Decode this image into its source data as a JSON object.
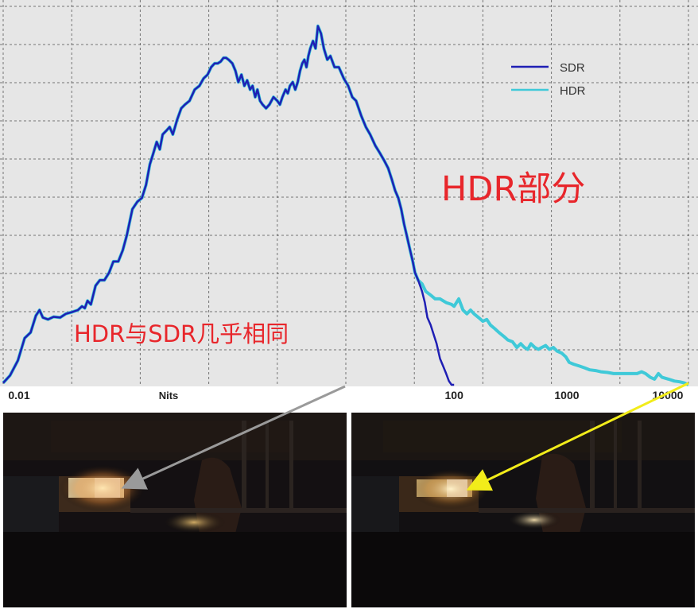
{
  "chart_data": {
    "type": "line",
    "x_scale": "log",
    "xlim": [
      0.01,
      12000
    ],
    "ylim": [
      0,
      1
    ],
    "grid": true,
    "legend_position": "top-right",
    "x_tick_labels": [
      {
        "value": 0.01,
        "label": "0.01"
      },
      {
        "value": 100,
        "label": "100"
      },
      {
        "value": 1000,
        "label": "1000"
      },
      {
        "value": 10000,
        "label": "10000"
      }
    ],
    "x_axis_label": "Nits",
    "series": [
      {
        "name": "SDR",
        "color": "#1f1fb4",
        "points": [
          [
            0.01,
            0.005
          ],
          [
            0.0115,
            0.025
          ],
          [
            0.0135,
            0.065
          ],
          [
            0.0155,
            0.125
          ],
          [
            0.0175,
            0.14
          ],
          [
            0.0195,
            0.185
          ],
          [
            0.021,
            0.2
          ],
          [
            0.0225,
            0.18
          ],
          [
            0.025,
            0.175
          ],
          [
            0.028,
            0.182
          ],
          [
            0.032,
            0.18
          ],
          [
            0.036,
            0.19
          ],
          [
            0.041,
            0.195
          ],
          [
            0.046,
            0.2
          ],
          [
            0.05,
            0.21
          ],
          [
            0.053,
            0.205
          ],
          [
            0.056,
            0.225
          ],
          [
            0.06,
            0.215
          ],
          [
            0.066,
            0.265
          ],
          [
            0.072,
            0.28
          ],
          [
            0.079,
            0.28
          ],
          [
            0.087,
            0.3
          ],
          [
            0.095,
            0.33
          ],
          [
            0.105,
            0.33
          ],
          [
            0.115,
            0.36
          ],
          [
            0.125,
            0.4
          ],
          [
            0.14,
            0.47
          ],
          [
            0.155,
            0.49
          ],
          [
            0.17,
            0.5
          ],
          [
            0.185,
            0.535
          ],
          [
            0.2,
            0.59
          ],
          [
            0.215,
            0.62
          ],
          [
            0.23,
            0.65
          ],
          [
            0.245,
            0.63
          ],
          [
            0.26,
            0.67
          ],
          [
            0.28,
            0.68
          ],
          [
            0.3,
            0.69
          ],
          [
            0.32,
            0.67
          ],
          [
            0.35,
            0.71
          ],
          [
            0.38,
            0.74
          ],
          [
            0.41,
            0.75
          ],
          [
            0.45,
            0.76
          ],
          [
            0.5,
            0.79
          ],
          [
            0.55,
            0.8
          ],
          [
            0.6,
            0.82
          ],
          [
            0.65,
            0.83
          ],
          [
            0.7,
            0.85
          ],
          [
            0.75,
            0.86
          ],
          [
            0.8,
            0.86
          ],
          [
            0.85,
            0.865
          ],
          [
            0.9,
            0.875
          ],
          [
            0.95,
            0.875
          ],
          [
            1.0,
            0.87
          ],
          [
            1.08,
            0.86
          ],
          [
            1.15,
            0.84
          ],
          [
            1.22,
            0.81
          ],
          [
            1.3,
            0.83
          ],
          [
            1.38,
            0.8
          ],
          [
            1.46,
            0.815
          ],
          [
            1.55,
            0.79
          ],
          [
            1.63,
            0.8
          ],
          [
            1.72,
            0.77
          ],
          [
            1.8,
            0.79
          ],
          [
            1.9,
            0.76
          ],
          [
            2.0,
            0.75
          ],
          [
            2.15,
            0.74
          ],
          [
            2.3,
            0.75
          ],
          [
            2.5,
            0.77
          ],
          [
            2.7,
            0.76
          ],
          [
            2.85,
            0.75
          ],
          [
            3.0,
            0.77
          ],
          [
            3.2,
            0.79
          ],
          [
            3.35,
            0.78
          ],
          [
            3.5,
            0.8
          ],
          [
            3.7,
            0.81
          ],
          [
            3.9,
            0.79
          ],
          [
            4.1,
            0.81
          ],
          [
            4.3,
            0.84
          ],
          [
            4.5,
            0.86
          ],
          [
            4.7,
            0.87
          ],
          [
            4.9,
            0.85
          ],
          [
            5.1,
            0.88
          ],
          [
            5.3,
            0.9
          ],
          [
            5.6,
            0.92
          ],
          [
            5.9,
            0.9
          ],
          [
            6.2,
            0.96
          ],
          [
            6.6,
            0.94
          ],
          [
            7.0,
            0.9
          ],
          [
            7.5,
            0.87
          ],
          [
            8.0,
            0.88
          ],
          [
            8.7,
            0.85
          ],
          [
            9.5,
            0.85
          ],
          [
            10.5,
            0.82
          ],
          [
            11.5,
            0.8
          ],
          [
            12.5,
            0.77
          ],
          [
            13.5,
            0.76
          ],
          [
            15,
            0.72
          ],
          [
            16.5,
            0.69
          ],
          [
            18,
            0.67
          ],
          [
            20,
            0.64
          ],
          [
            22,
            0.62
          ],
          [
            24,
            0.6
          ],
          [
            26,
            0.58
          ],
          [
            28,
            0.55
          ],
          [
            30,
            0.52
          ],
          [
            32,
            0.5
          ],
          [
            34,
            0.47
          ],
          [
            36,
            0.43
          ],
          [
            38,
            0.4
          ],
          [
            40,
            0.37
          ],
          [
            43,
            0.33
          ],
          [
            45,
            0.3
          ],
          [
            48,
            0.28
          ],
          [
            52,
            0.25
          ],
          [
            55,
            0.22
          ],
          [
            58,
            0.18
          ],
          [
            62,
            0.16
          ],
          [
            65,
            0.14
          ],
          [
            70,
            0.11
          ],
          [
            75,
            0.07
          ],
          [
            80,
            0.05
          ],
          [
            85,
            0.03
          ],
          [
            90,
            0.01
          ],
          [
            95,
            0.0
          ],
          [
            100,
            0.0
          ]
        ]
      },
      {
        "name": "HDR",
        "color": "#3fc9d8",
        "points": [
          [
            0.01,
            0.005
          ],
          [
            0.0115,
            0.025
          ],
          [
            0.0135,
            0.065
          ],
          [
            0.0155,
            0.125
          ],
          [
            0.0175,
            0.14
          ],
          [
            0.0195,
            0.185
          ],
          [
            0.021,
            0.2
          ],
          [
            0.0225,
            0.18
          ],
          [
            0.025,
            0.175
          ],
          [
            0.028,
            0.182
          ],
          [
            0.032,
            0.18
          ],
          [
            0.036,
            0.19
          ],
          [
            0.041,
            0.195
          ],
          [
            0.046,
            0.2
          ],
          [
            0.05,
            0.21
          ],
          [
            0.053,
            0.205
          ],
          [
            0.056,
            0.225
          ],
          [
            0.06,
            0.215
          ],
          [
            0.066,
            0.265
          ],
          [
            0.072,
            0.28
          ],
          [
            0.079,
            0.28
          ],
          [
            0.087,
            0.3
          ],
          [
            0.095,
            0.33
          ],
          [
            0.105,
            0.33
          ],
          [
            0.115,
            0.36
          ],
          [
            0.125,
            0.4
          ],
          [
            0.14,
            0.47
          ],
          [
            0.155,
            0.49
          ],
          [
            0.17,
            0.5
          ],
          [
            0.185,
            0.535
          ],
          [
            0.2,
            0.59
          ],
          [
            0.215,
            0.62
          ],
          [
            0.23,
            0.65
          ],
          [
            0.245,
            0.63
          ],
          [
            0.26,
            0.67
          ],
          [
            0.28,
            0.68
          ],
          [
            0.3,
            0.69
          ],
          [
            0.32,
            0.67
          ],
          [
            0.35,
            0.71
          ],
          [
            0.38,
            0.74
          ],
          [
            0.41,
            0.75
          ],
          [
            0.45,
            0.76
          ],
          [
            0.5,
            0.79
          ],
          [
            0.55,
            0.8
          ],
          [
            0.6,
            0.82
          ],
          [
            0.65,
            0.83
          ],
          [
            0.7,
            0.85
          ],
          [
            0.75,
            0.86
          ],
          [
            0.8,
            0.86
          ],
          [
            0.85,
            0.865
          ],
          [
            0.9,
            0.875
          ],
          [
            0.95,
            0.875
          ],
          [
            1.0,
            0.87
          ],
          [
            1.08,
            0.86
          ],
          [
            1.15,
            0.84
          ],
          [
            1.22,
            0.81
          ],
          [
            1.3,
            0.83
          ],
          [
            1.38,
            0.8
          ],
          [
            1.46,
            0.815
          ],
          [
            1.55,
            0.79
          ],
          [
            1.63,
            0.8
          ],
          [
            1.72,
            0.77
          ],
          [
            1.8,
            0.79
          ],
          [
            1.9,
            0.76
          ],
          [
            2.0,
            0.75
          ],
          [
            2.15,
            0.74
          ],
          [
            2.3,
            0.75
          ],
          [
            2.5,
            0.77
          ],
          [
            2.7,
            0.76
          ],
          [
            2.85,
            0.75
          ],
          [
            3.0,
            0.77
          ],
          [
            3.2,
            0.79
          ],
          [
            3.35,
            0.78
          ],
          [
            3.5,
            0.8
          ],
          [
            3.7,
            0.81
          ],
          [
            3.9,
            0.79
          ],
          [
            4.1,
            0.81
          ],
          [
            4.3,
            0.84
          ],
          [
            4.5,
            0.86
          ],
          [
            4.7,
            0.87
          ],
          [
            4.9,
            0.85
          ],
          [
            5.1,
            0.88
          ],
          [
            5.3,
            0.9
          ],
          [
            5.6,
            0.92
          ],
          [
            5.9,
            0.9
          ],
          [
            6.2,
            0.96
          ],
          [
            6.6,
            0.94
          ],
          [
            7.0,
            0.9
          ],
          [
            7.5,
            0.87
          ],
          [
            8.0,
            0.88
          ],
          [
            8.7,
            0.85
          ],
          [
            9.5,
            0.85
          ],
          [
            10.5,
            0.82
          ],
          [
            11.5,
            0.8
          ],
          [
            12.5,
            0.77
          ],
          [
            13.5,
            0.76
          ],
          [
            15,
            0.72
          ],
          [
            16.5,
            0.69
          ],
          [
            18,
            0.67
          ],
          [
            20,
            0.64
          ],
          [
            22,
            0.62
          ],
          [
            24,
            0.6
          ],
          [
            26,
            0.58
          ],
          [
            28,
            0.55
          ],
          [
            30,
            0.52
          ],
          [
            32,
            0.5
          ],
          [
            34,
            0.47
          ],
          [
            36,
            0.43
          ],
          [
            38,
            0.4
          ],
          [
            40,
            0.37
          ],
          [
            43,
            0.33
          ],
          [
            45,
            0.3
          ],
          [
            48,
            0.28
          ],
          [
            52,
            0.27
          ],
          [
            56,
            0.25
          ],
          [
            62,
            0.24
          ],
          [
            68,
            0.23
          ],
          [
            75,
            0.23
          ],
          [
            85,
            0.22
          ],
          [
            95,
            0.215
          ],
          [
            100,
            0.21
          ],
          [
            110,
            0.23
          ],
          [
            120,
            0.2
          ],
          [
            130,
            0.19
          ],
          [
            140,
            0.2
          ],
          [
            150,
            0.19
          ],
          [
            165,
            0.18
          ],
          [
            180,
            0.17
          ],
          [
            195,
            0.175
          ],
          [
            210,
            0.16
          ],
          [
            230,
            0.15
          ],
          [
            250,
            0.14
          ],
          [
            275,
            0.13
          ],
          [
            300,
            0.12
          ],
          [
            330,
            0.115
          ],
          [
            360,
            0.1
          ],
          [
            390,
            0.11
          ],
          [
            420,
            0.1
          ],
          [
            450,
            0.095
          ],
          [
            480,
            0.11
          ],
          [
            520,
            0.1
          ],
          [
            560,
            0.095
          ],
          [
            600,
            0.1
          ],
          [
            650,
            0.105
          ],
          [
            700,
            0.095
          ],
          [
            760,
            0.1
          ],
          [
            820,
            0.09
          ],
          [
            900,
            0.085
          ],
          [
            980,
            0.075
          ],
          [
            1050,
            0.06
          ],
          [
            1150,
            0.055
          ],
          [
            1300,
            0.05
          ],
          [
            1450,
            0.045
          ],
          [
            1600,
            0.04
          ],
          [
            1800,
            0.038
          ],
          [
            2000,
            0.035
          ],
          [
            2300,
            0.033
          ],
          [
            2600,
            0.03
          ],
          [
            3000,
            0.03
          ],
          [
            3400,
            0.03
          ],
          [
            3800,
            0.03
          ],
          [
            4200,
            0.03
          ],
          [
            4600,
            0.035
          ],
          [
            5000,
            0.03
          ],
          [
            5500,
            0.02
          ],
          [
            6000,
            0.015
          ],
          [
            6500,
            0.03
          ],
          [
            7000,
            0.02
          ],
          [
            8000,
            0.015
          ],
          [
            9000,
            0.01
          ],
          [
            10000,
            0.008
          ],
          [
            11000,
            0.005
          ],
          [
            12000,
            0.0
          ]
        ]
      }
    ],
    "annotations": [
      {
        "id": "hdr_region",
        "text": "HDR部分",
        "color": "#e8262b"
      },
      {
        "id": "same_region",
        "text": "HDR与SDR几乎相同",
        "color": "#e8262b"
      }
    ]
  },
  "photos": [
    {
      "id": "sdr_photo",
      "arrow_color": "#9a9a9a"
    },
    {
      "id": "hdr_photo",
      "arrow_color": "#f2ec1a"
    }
  ]
}
